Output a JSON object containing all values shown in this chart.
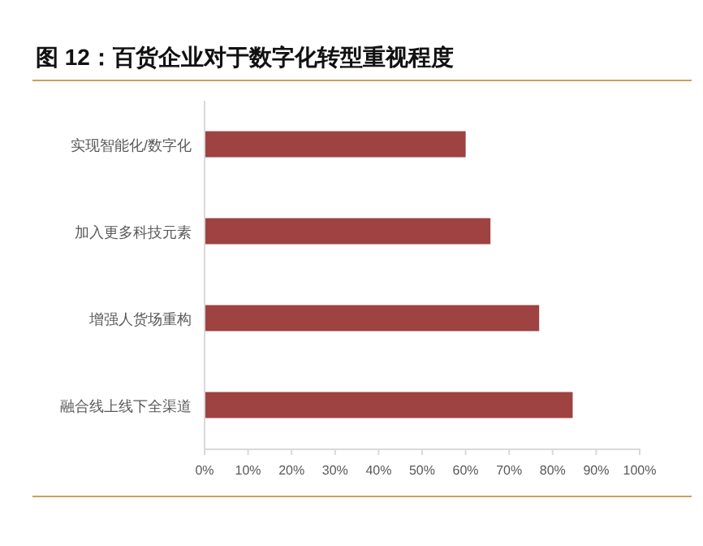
{
  "chart_data": {
    "type": "bar",
    "orientation": "horizontal",
    "title": "图 12：百货企业对于数字化转型重视程度",
    "categories": [
      "实现智能化/数字化",
      "加入更多科技元素",
      "增强人货场重构",
      "融合线上线下全渠道"
    ],
    "values": [
      60.0,
      65.7,
      76.9,
      84.6
    ],
    "color": "#9e4242",
    "xlim": [
      0,
      100
    ],
    "xticks": [
      {
        "value": 0,
        "label": "0%"
      },
      {
        "value": 10,
        "label": "10%"
      },
      {
        "value": 20,
        "label": "20%"
      },
      {
        "value": 30,
        "label": "30%"
      },
      {
        "value": 40,
        "label": "40%"
      },
      {
        "value": 50,
        "label": "50%"
      },
      {
        "value": 60,
        "label": "60%"
      },
      {
        "value": 70,
        "label": "70%"
      },
      {
        "value": 80,
        "label": "80%"
      },
      {
        "value": 90,
        "label": "90%"
      },
      {
        "value": 100,
        "label": "100%"
      }
    ]
  }
}
